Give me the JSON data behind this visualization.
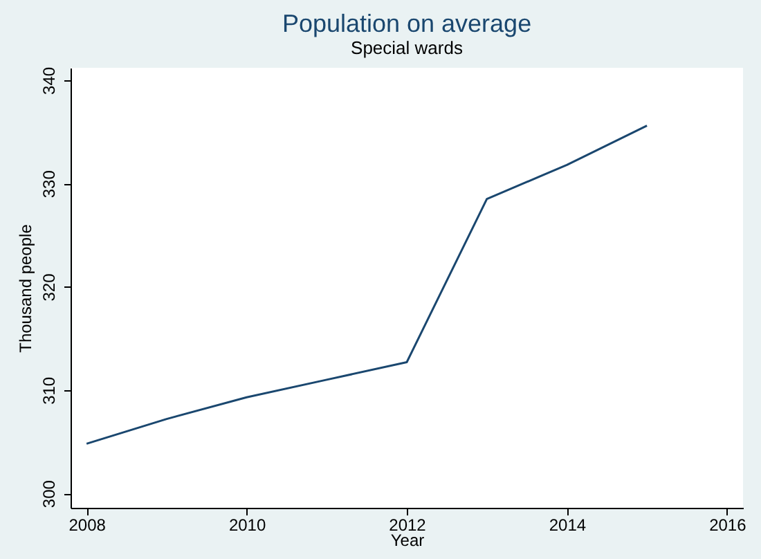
{
  "chart_data": {
    "type": "line",
    "title": "Population on average",
    "subtitle": "Special wards",
    "xlabel": "Year",
    "ylabel": "Thousand people",
    "x": [
      2008,
      2009,
      2010,
      2011,
      2012,
      2013,
      2014,
      2015
    ],
    "series": [
      {
        "color": "#1a476f",
        "values": [
          304.8,
          307.2,
          309.3,
          311.0,
          312.7,
          328.5,
          331.8,
          335.6
        ]
      }
    ],
    "xlim": [
      2007.8,
      2016.2
    ],
    "xticks": [
      2008,
      2010,
      2012,
      2014,
      2016
    ],
    "ylim": [
      298.6,
      341.2
    ],
    "yticks": [
      300,
      310,
      320,
      330,
      340
    ],
    "marker": "none",
    "line_style": "solid"
  }
}
